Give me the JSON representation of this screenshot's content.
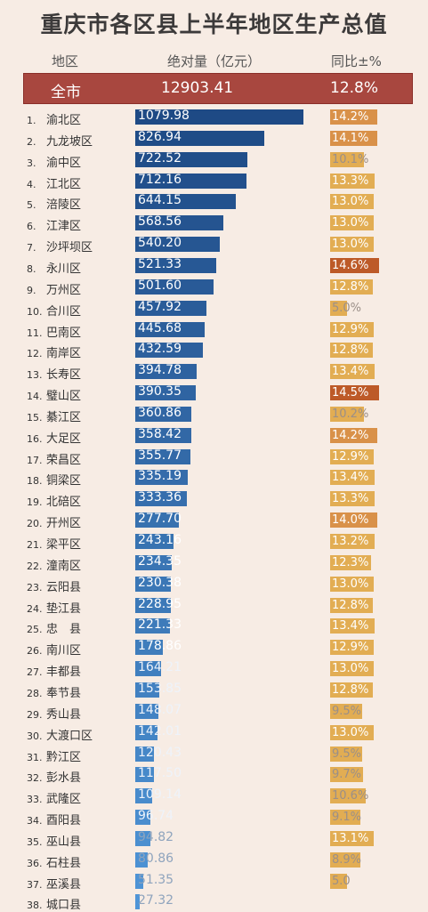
{
  "title": "重庆市各区县上半年地区生产总值",
  "headers": {
    "region": "地区",
    "value": "绝对量（亿元）",
    "yoy": "同比±%"
  },
  "total": {
    "name": "全市",
    "value": "12903.41",
    "yoy": "12.8%"
  },
  "colors": {
    "bar_top": "#1e4a85",
    "bar_bottom": "#4f95d7",
    "yoy_normal": "#e2ad53",
    "yoy_mid": "#d99149",
    "yoy_high": "#bd5a28",
    "total_bg": "#a8473f"
  },
  "chart_data": {
    "type": "bar",
    "categories": [
      "渝北区",
      "九龙坡区",
      "渝中区",
      "江北区",
      "涪陵区",
      "江津区",
      "沙坪坝区",
      "永川区",
      "万州区",
      "合川区",
      "巴南区",
      "南岸区",
      "长寿区",
      "璧山区",
      "綦江区",
      "大足区",
      "荣昌区",
      "铜梁区",
      "北碚区",
      "开州区",
      "梁平区",
      "潼南区",
      "云阳县",
      "垫江县",
      "忠　县",
      "南川区",
      "丰都县",
      "奉节县",
      "秀山县",
      "大渡口区",
      "黔江区",
      "彭水县",
      "武隆区",
      "酉阳县",
      "巫山县",
      "石柱县",
      "巫溪县",
      "城口县"
    ],
    "ranks": [
      "1.",
      "2.",
      "3.",
      "4.",
      "5.",
      "6.",
      "7.",
      "8.",
      "9.",
      "10.",
      "11.",
      "12.",
      "13.",
      "14.",
      "15.",
      "16.",
      "17.",
      "18.",
      "19.",
      "20.",
      "21.",
      "22.",
      "23.",
      "24.",
      "25.",
      "26.",
      "27.",
      "28.",
      "29.",
      "30.",
      "31.",
      "32.",
      "33.",
      "34.",
      "35.",
      "36.",
      "37.",
      "38."
    ],
    "values": [
      1079.98,
      826.94,
      722.52,
      712.16,
      644.15,
      568.56,
      540.2,
      521.33,
      501.6,
      457.92,
      445.68,
      432.59,
      394.78,
      390.35,
      360.86,
      358.42,
      355.77,
      335.19,
      333.36,
      277.7,
      243.16,
      234.35,
      230.38,
      228.95,
      221.33,
      178.86,
      164.21,
      153.85,
      148.07,
      142.01,
      120.43,
      117.5,
      109.14,
      96.74,
      94.82,
      80.86,
      51.35,
      27.32
    ],
    "value_labels": [
      "1079.98",
      "826.94",
      "722.52",
      "712.16",
      "644.15",
      "568.56",
      "540.20",
      "521.33",
      "501.60",
      "457.92",
      "445.68",
      "432.59",
      "394.78",
      "390.35",
      "360.86",
      "358.42",
      "355.77",
      "335.19",
      "333.36",
      "277.70",
      "243.16",
      "234.35",
      "230.38",
      "228.95",
      "221.33",
      "178.86",
      "164.21",
      "153.85",
      "148.07",
      "142.01",
      "120.43",
      "117.50",
      "109.14",
      "96.74",
      "94.82",
      "80.86",
      "51.35",
      "27.32"
    ],
    "yoy": [
      14.2,
      14.1,
      10.1,
      13.3,
      13.0,
      13.0,
      13.0,
      14.6,
      12.8,
      5.0,
      12.9,
      12.8,
      13.4,
      14.5,
      10.2,
      14.2,
      12.9,
      13.4,
      13.3,
      14.0,
      13.2,
      12.3,
      13.0,
      12.8,
      13.4,
      12.9,
      13.0,
      12.8,
      9.5,
      13.0,
      9.5,
      9.7,
      10.6,
      9.1,
      13.1,
      8.9,
      5.0,
      null
    ],
    "yoy_labels": [
      "14.2%",
      "14.1%",
      "10.1%",
      "13.3%",
      "13.0%",
      "13.0%",
      "13.0%",
      "14.6%",
      "12.8%",
      "5.0%",
      "12.9%",
      "12.8%",
      "13.4%",
      "14.5%",
      "10.2%",
      "14.2%",
      "12.9%",
      "13.4%",
      "13.3%",
      "14.0%",
      "13.2%",
      "12.3%",
      "13.0%",
      "12.8%",
      "13.4%",
      "12.9%",
      "13.0%",
      "12.8%",
      "9.5%",
      "13.0%",
      "9.5%",
      "9.7%",
      "10.6%",
      "9.1%",
      "13.1%",
      "8.9%",
      "5.0",
      ""
    ],
    "xlim": [
      0,
      1079.98
    ],
    "ylim_yoy": [
      0,
      14.6
    ]
  }
}
